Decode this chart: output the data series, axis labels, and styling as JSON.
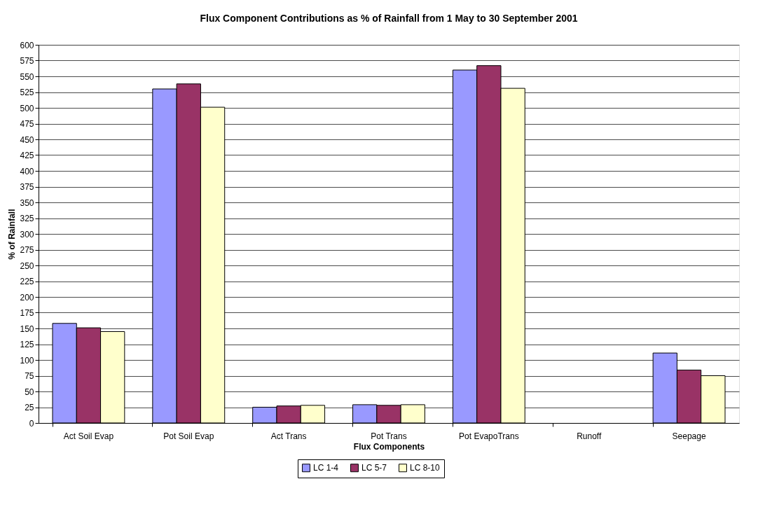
{
  "chart_data": {
    "type": "bar",
    "title": "Flux Component Contributions as % of Rainfall from 1 May to 30 September 2001",
    "xlabel": "Flux Components",
    "ylabel": "% of Rainfall",
    "categories": [
      "Act Soil Evap",
      "Pot Soil Evap",
      "Act Trans",
      "Pot Trans",
      "Pot EvapoTrans",
      "Runoff",
      "Seepage"
    ],
    "series": [
      {
        "name": "LC 1-4",
        "color": "#9999ff",
        "values": [
          158,
          530,
          25,
          29,
          560,
          0,
          111
        ]
      },
      {
        "name": "LC 5-7",
        "color": "#993366",
        "values": [
          151,
          538,
          27,
          28,
          567,
          0,
          84
        ]
      },
      {
        "name": "LC 8-10",
        "color": "#ffffcc",
        "values": [
          145,
          501,
          28,
          29,
          531,
          0,
          75
        ]
      }
    ],
    "ylim": [
      0,
      600
    ],
    "yticks": [
      0,
      25,
      50,
      75,
      100,
      125,
      150,
      175,
      200,
      225,
      250,
      275,
      300,
      325,
      350,
      375,
      400,
      425,
      450,
      475,
      500,
      525,
      550,
      575,
      600
    ],
    "grid": "y",
    "legend": "bottom"
  }
}
